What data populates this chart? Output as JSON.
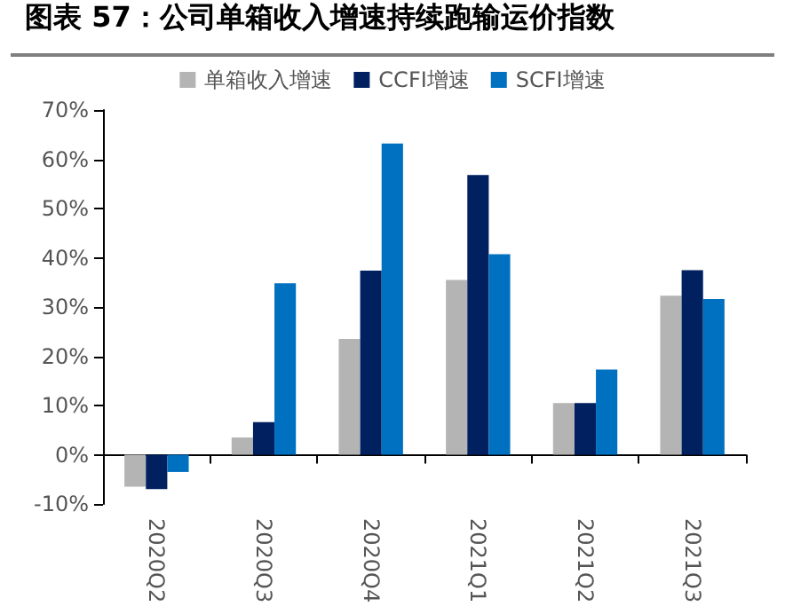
{
  "chart_data": {
    "type": "bar",
    "title": "图表 57：公司单箱收入增速持续跑输运价指数",
    "categories": [
      "2020Q2",
      "2020Q3",
      "2020Q4",
      "2021Q1",
      "2021Q2",
      "2021Q3"
    ],
    "series": [
      {
        "name": "单箱收入增速",
        "color": "#b4b4b4",
        "values": [
          -6.5,
          3.5,
          23.5,
          35.5,
          10.5,
          32.3
        ]
      },
      {
        "name": "CCFI增速",
        "color": "#002060",
        "values": [
          -7,
          6.6,
          37.4,
          56.8,
          10.5,
          37.5
        ]
      },
      {
        "name": "SCFI增速",
        "color": "#0070c0",
        "values": [
          -3.5,
          34.8,
          63.2,
          40.7,
          17.3,
          31.6
        ]
      }
    ],
    "ylim": [
      -10,
      70
    ],
    "yticks": [
      {
        "value": -10,
        "label": "-10%"
      },
      {
        "value": 0,
        "label": "0%"
      },
      {
        "value": 10,
        "label": "10%"
      },
      {
        "value": 20,
        "label": "20%"
      },
      {
        "value": 30,
        "label": "30%"
      },
      {
        "value": 40,
        "label": "40%"
      },
      {
        "value": 50,
        "label": "50%"
      },
      {
        "value": 60,
        "label": "60%"
      },
      {
        "value": 70,
        "label": "70%"
      }
    ],
    "legend": "top"
  }
}
